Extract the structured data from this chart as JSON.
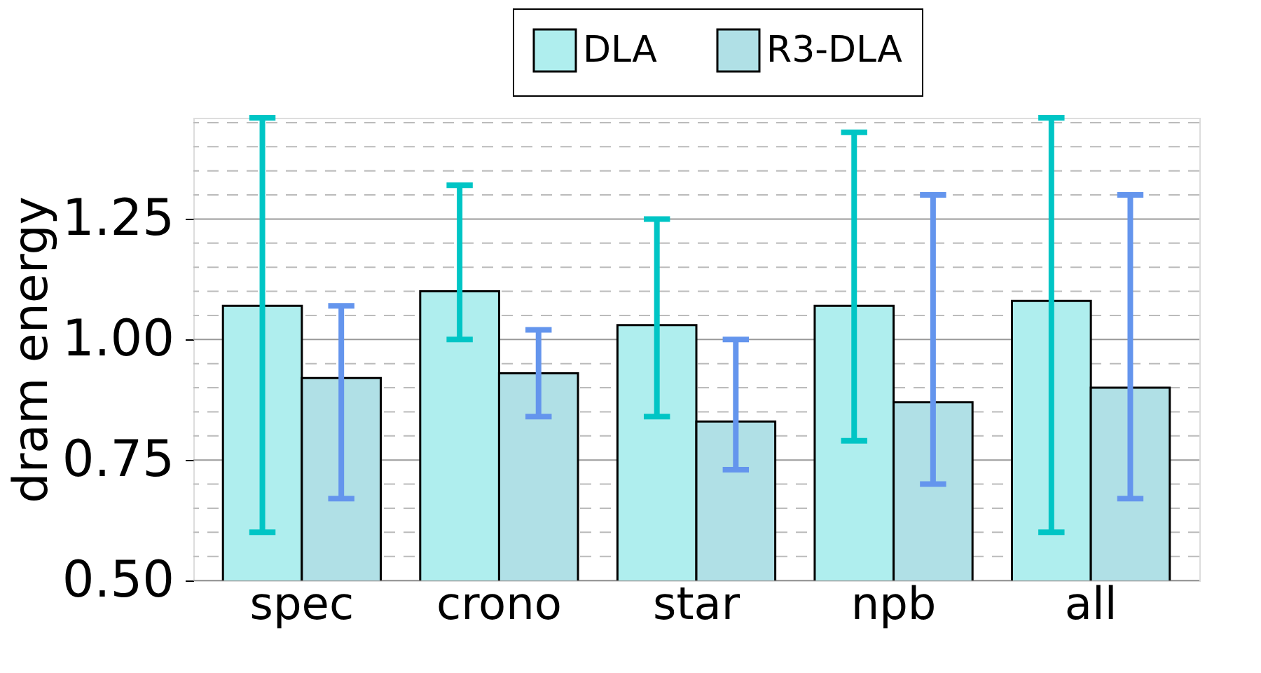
{
  "chart_data": {
    "type": "bar",
    "ylabel": "dram energy",
    "categories": [
      "spec",
      "crono",
      "star",
      "npb",
      "all"
    ],
    "series": [
      {
        "name": "DLA",
        "color": "#afeeee",
        "values": [
          1.07,
          1.1,
          1.03,
          1.07,
          1.08
        ],
        "errors": [
          [
            0.6,
            1.46
          ],
          [
            1.0,
            1.32
          ],
          [
            0.84,
            1.25
          ],
          [
            0.79,
            1.43
          ],
          [
            0.6,
            1.46
          ]
        ]
      },
      {
        "name": "R3-DLA",
        "color": "#b0e0e6",
        "values": [
          0.92,
          0.93,
          0.83,
          0.87,
          0.9
        ],
        "errors": [
          [
            0.67,
            1.07
          ],
          [
            0.84,
            1.02
          ],
          [
            0.73,
            1.0
          ],
          [
            0.7,
            1.3
          ],
          [
            0.67,
            1.3
          ]
        ]
      }
    ],
    "ylim": [
      0.5,
      1.46
    ],
    "yticks": [
      {
        "value": 0.5,
        "label": "0.50"
      },
      {
        "value": 0.55,
        "label": null
      },
      {
        "value": 0.6,
        "label": null
      },
      {
        "value": 0.65,
        "label": null
      },
      {
        "value": 0.7,
        "label": null
      },
      {
        "value": 0.75,
        "label": "0.75"
      },
      {
        "value": 0.8,
        "label": null
      },
      {
        "value": 0.85,
        "label": null
      },
      {
        "value": 0.9,
        "label": null
      },
      {
        "value": 0.95,
        "label": null
      },
      {
        "value": 1.0,
        "label": "1.00"
      },
      {
        "value": 1.05,
        "label": null
      },
      {
        "value": 1.1,
        "label": null
      },
      {
        "value": 1.15,
        "label": null
      },
      {
        "value": 1.2,
        "label": null
      },
      {
        "value": 1.25,
        "label": "1.25"
      },
      {
        "value": 1.3,
        "label": null
      },
      {
        "value": 1.35,
        "label": null
      },
      {
        "value": 1.4,
        "label": null
      },
      {
        "value": 1.45,
        "label": null
      }
    ],
    "grid": true,
    "legend": "top right"
  }
}
